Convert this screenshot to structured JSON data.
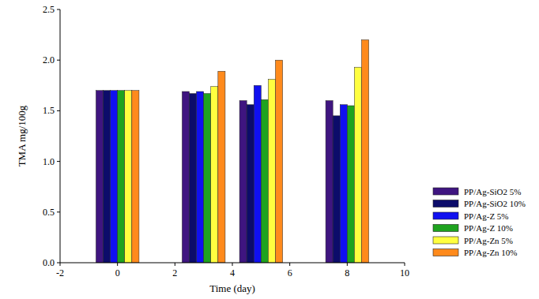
{
  "chart_data": {
    "type": "bar",
    "x_label": "Time (day)",
    "y_label": "TMA mg/100g",
    "x": [
      0,
      3,
      5,
      8
    ],
    "series": [
      {
        "name": "PP/Ag-SiO2 5%",
        "color": "#3f1580",
        "values": [
          1.7,
          1.69,
          1.6,
          1.6
        ]
      },
      {
        "name": "PP/Ag-SiO2 10%",
        "color": "#0c0c6a",
        "values": [
          1.7,
          1.67,
          1.56,
          1.45
        ]
      },
      {
        "name": "PP/Ag-Z 5%",
        "color": "#1010f0",
        "values": [
          1.7,
          1.69,
          1.75,
          1.56
        ]
      },
      {
        "name": "PP/Ag-Z 10%",
        "color": "#1fa31f",
        "values": [
          1.7,
          1.67,
          1.61,
          1.55
        ]
      },
      {
        "name": "PP/Ag-Zn 5%",
        "color": "#ffff40",
        "values": [
          1.7,
          1.74,
          1.81,
          1.93
        ]
      },
      {
        "name": "PP/Ag-Zn 10%",
        "color": "#ff8a1c",
        "values": [
          1.7,
          1.89,
          2.0,
          2.2
        ]
      }
    ],
    "xlim": [
      -2,
      10
    ],
    "xticks": [
      -2,
      0,
      2,
      4,
      6,
      8,
      10
    ],
    "ylim": [
      0,
      2.5
    ],
    "yticks": [
      {
        "value": 0,
        "label": "0.0"
      },
      0.5,
      {
        "value": 1,
        "label": "1.0"
      },
      1.5,
      {
        "value": 2,
        "label": "2.0"
      },
      2.5
    ],
    "grid": false,
    "legend": "right"
  }
}
